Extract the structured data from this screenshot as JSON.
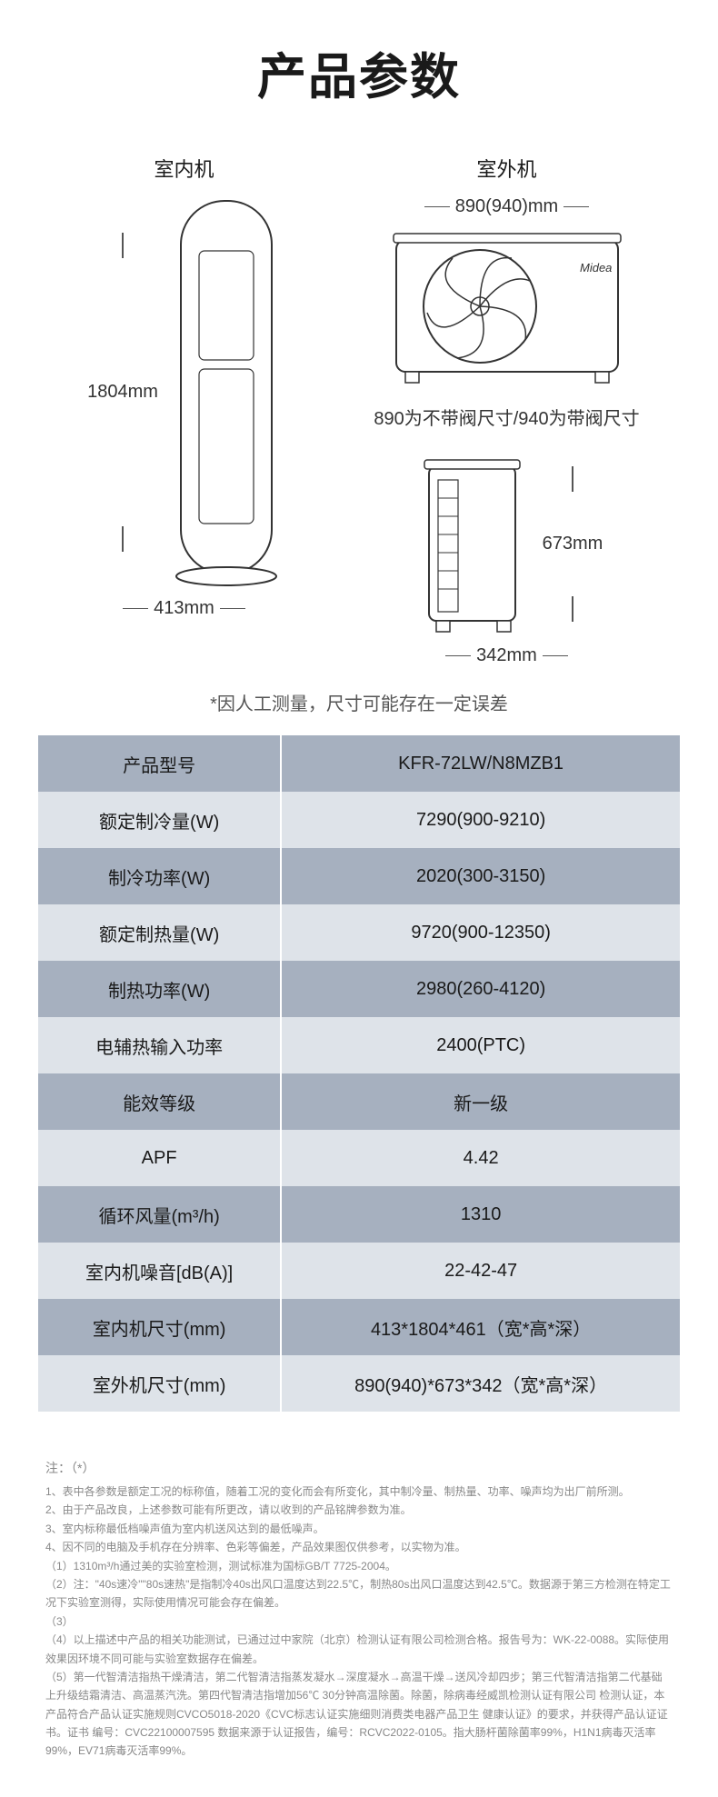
{
  "title": "产品参数",
  "diagram": {
    "indoor_label": "室内机",
    "outdoor_label": "室外机",
    "indoor_height": "1804mm",
    "indoor_width": "413mm",
    "outdoor_width": "890(940)mm",
    "outdoor_note": "890为不带阀尺寸/940为带阀尺寸",
    "outdoor_depth": "342mm",
    "outdoor_height": "673mm",
    "brand": "Midea"
  },
  "disclaimer": "*因人工测量，尺寸可能存在一定误差",
  "specs": [
    {
      "label": "产品型号",
      "value": "KFR-72LW/N8MZB1"
    },
    {
      "label": "额定制冷量(W)",
      "value": "7290(900-9210)"
    },
    {
      "label": "制冷功率(W)",
      "value": "2020(300-3150)"
    },
    {
      "label": "额定制热量(W)",
      "value": "9720(900-12350)"
    },
    {
      "label": "制热功率(W)",
      "value": "2980(260-4120)"
    },
    {
      "label": "电辅热输入功率",
      "value": "2400(PTC)"
    },
    {
      "label": "能效等级",
      "value": "新一级"
    },
    {
      "label": "APF",
      "value": "4.42"
    },
    {
      "label": "循环风量(m³/h)",
      "value": "1310"
    },
    {
      "label": "室内机噪音[dB(A)]",
      "value": "22-42-47"
    },
    {
      "label": "室内机尺寸(mm)",
      "value": "413*1804*461（宽*高*深）"
    },
    {
      "label": "室外机尺寸(mm)",
      "value": "890(940)*673*342（宽*高*深）"
    }
  ],
  "footnotes": {
    "title": "注：（*）",
    "lines": [
      "1、表中各参数是额定工况的标称值，随着工况的变化而会有所变化，其中制冷量、制热量、功率、噪声均为出厂前所测。",
      "2、由于产品改良，上述参数可能有所更改，请以收到的产品铭牌参数为准。",
      "3、室内标称最低档噪声值为室内机送风达到的最低噪声。",
      "4、因不同的电脑及手机存在分辨率、色彩等偏差，产品效果图仅供参考，以实物为准。",
      "（1）1310m³/h通过美的实验室检测，测试标准为国标GB/T 7725-2004。",
      "（2）注：\"40s速冷\"\"80s速热\"是指制冷40s出风口温度达到22.5℃，制热80s出风口温度达到42.5℃。数据源于第三方检测在特定工况下实验室测得，实际使用情况可能会存在偏差。",
      "（3）",
      "（4）以上描述中产品的相关功能测试，已通过过中家院（北京）检测认证有限公司检测合格。报告号为：WK-22-0088。实际使用效果因环境不同可能与实验室数据存在偏差。",
      "（5）第一代智清洁指热干燥清洁，第二代智清洁指蒸发凝水→深度凝水→高温干燥→送风冷却四步；第三代智清洁指第二代基础上升级结霜清洁、高温蒸汽洗。第四代智清洁指增加56℃ 30分钟高温除菌。除菌，除病毒经威凯检测认证有限公司 检测认证，本产品符合产品认证实施规则CVCO5018-2020《CVC标志认证实施细则消费类电器产品卫生 健康认证》的要求，并获得产品认证证书。证书 编号：CVC22100007595 数据来源于认证报告，编号：RCVC2022-0105。指大肠杆菌除菌率99%，H1N1病毒灭活率99%，EV71病毒灭活率99%。"
    ]
  },
  "colors": {
    "row_dark": "#a6b0bf",
    "row_light": "#dee3e9",
    "text": "#1a1a1a",
    "footnote": "#888888"
  }
}
